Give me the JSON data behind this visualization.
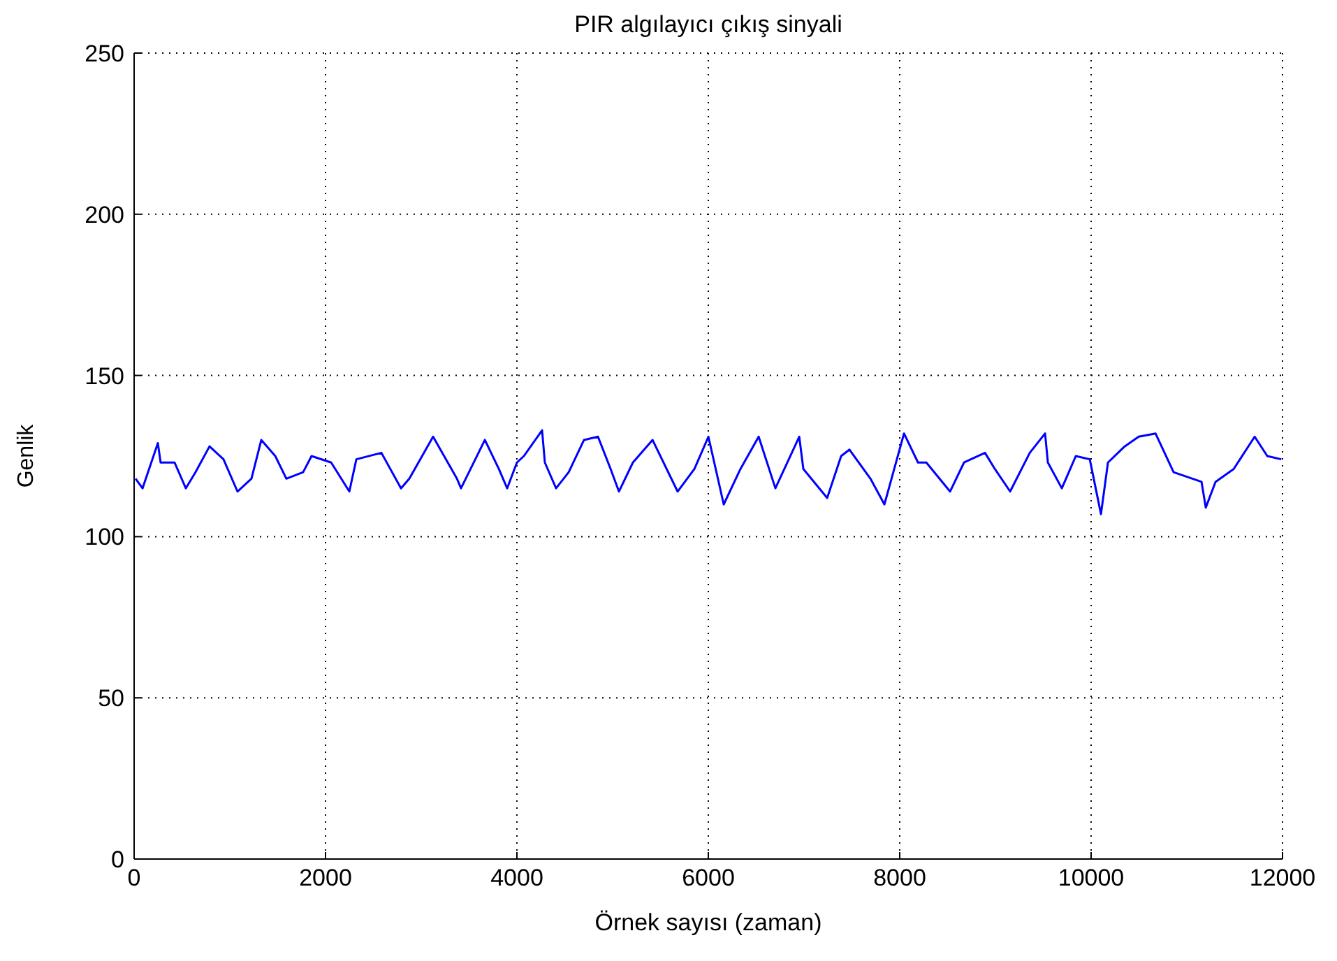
{
  "chart_data": {
    "type": "line",
    "title": "PIR algılayıcı çıkış sinyali",
    "xlabel": "Örnek sayısı (zaman)",
    "ylabel": "Genlik",
    "x": [
      15,
      88,
      248,
      277,
      423,
      540,
      642,
      788,
      934,
      1080,
      1226,
      1329,
      1475,
      1591,
      1766,
      1854,
      2059,
      2249,
      2322,
      2584,
      2789,
      2876,
      3124,
      3373,
      3416,
      3665,
      3811,
      3898,
      4000,
      4073,
      4263,
      4292,
      4409,
      4541,
      4701,
      4847,
      4979,
      5066,
      5212,
      5417,
      5679,
      5855,
      6001,
      6161,
      6336,
      6526,
      6701,
      6950,
      6993,
      7242,
      7388,
      7475,
      7694,
      7840,
      8045,
      8191,
      8278,
      8526,
      8672,
      8891,
      8994,
      9154,
      9359,
      9519,
      9548,
      9694,
      9840,
      9986,
      10103,
      10176,
      10351,
      10497,
      10673,
      10862,
      11154,
      11198,
      11300,
      11490,
      11709,
      11841,
      11987
    ],
    "series": [
      {
        "color": "#0000ff",
        "values": [
          118,
          115,
          129,
          123,
          123,
          115,
          120,
          128,
          124,
          114,
          118,
          130,
          125,
          118,
          120,
          125,
          123,
          114,
          124,
          126,
          115,
          118,
          131,
          118,
          115,
          130,
          121,
          115,
          123,
          125,
          133,
          123,
          115,
          120,
          130,
          131,
          121,
          114,
          123,
          130,
          114,
          121,
          131,
          110,
          121,
          131,
          115,
          131,
          121,
          112,
          125,
          127,
          118,
          110,
          132,
          123,
          123,
          114,
          123,
          126,
          121,
          114,
          126,
          132,
          123,
          115,
          125,
          124,
          107,
          123,
          128,
          131,
          132,
          120,
          117,
          109,
          117,
          121,
          131,
          125,
          124
        ]
      }
    ],
    "xlim": [
      0,
      12000
    ],
    "ylim": [
      0,
      250
    ],
    "xticks": [
      0,
      2000,
      4000,
      6000,
      8000,
      10000,
      12000
    ],
    "yticks": [
      0,
      50,
      100,
      150,
      200,
      250
    ],
    "grid": true,
    "line_style": "solid"
  }
}
